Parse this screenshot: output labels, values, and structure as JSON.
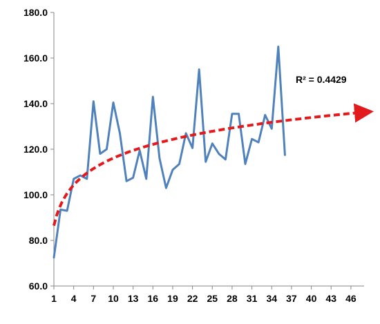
{
  "chart_data": {
    "type": "line",
    "title": "",
    "xlabel": "",
    "ylabel": "",
    "ylim": [
      60,
      180
    ],
    "xlim": [
      1,
      48
    ],
    "grid": false,
    "legend": "none",
    "y_ticks": [
      "60.0",
      "80.0",
      "100.0",
      "120.0",
      "140.0",
      "160.0",
      "180.0"
    ],
    "y_tick_values": [
      60,
      80,
      100,
      120,
      140,
      160,
      180
    ],
    "x_ticks": [
      "1",
      "4",
      "7",
      "10",
      "13",
      "16",
      "19",
      "22",
      "25",
      "28",
      "31",
      "34",
      "37",
      "40",
      "43",
      "46"
    ],
    "x_tick_values": [
      1,
      4,
      7,
      10,
      13,
      16,
      19,
      22,
      25,
      28,
      31,
      34,
      37,
      40,
      43,
      46
    ],
    "series": [
      {
        "style": "solid",
        "color": "#4f81bd",
        "x": [
          1,
          2,
          3,
          4,
          5,
          6,
          7,
          8,
          9,
          10,
          11,
          12,
          13,
          14,
          15,
          16,
          17,
          18,
          19,
          20,
          21,
          22,
          23,
          24,
          25,
          26,
          27,
          28,
          29,
          30,
          31,
          32,
          33,
          34,
          35,
          36
        ],
        "values": [
          72.5,
          93.5,
          93,
          107,
          108.5,
          107,
          141,
          118,
          120,
          140.5,
          127,
          106,
          107.5,
          119.5,
          107,
          143,
          116,
          103,
          111,
          113.5,
          127,
          120.5,
          155,
          114.5,
          122.5,
          118,
          115.5,
          135.5,
          135.5,
          113.5,
          124.5,
          123,
          135,
          129,
          165,
          117.5
        ]
      },
      {
        "style": "dashed",
        "color": "#e31a1c",
        "x": [
          1,
          48
        ],
        "trend": {
          "kind": "logarithmic",
          "a": 86.5,
          "b": 12.85
        },
        "arrow": true
      }
    ],
    "annotations": [
      {
        "text": "R² = 0.4429",
        "anchor": "right-of-trend-peak"
      }
    ]
  }
}
